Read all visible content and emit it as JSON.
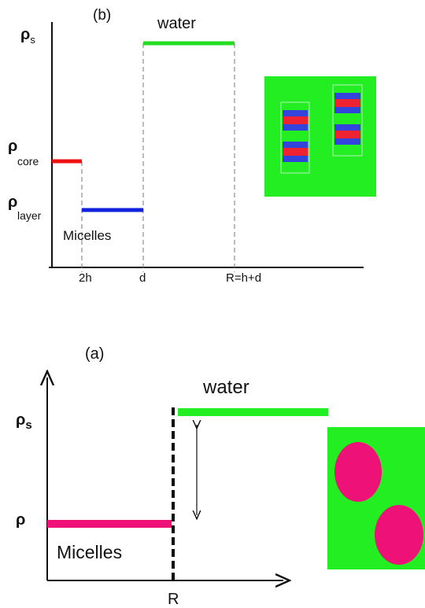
{
  "panel_b": {
    "label": "(b)",
    "water": "water",
    "micelles": "Micelles",
    "y_labels": [
      {
        "symbol": "ρ",
        "sub": "s"
      },
      {
        "symbol": "ρ",
        "sub": "core"
      },
      {
        "symbol": "ρ",
        "sub": "layer"
      }
    ],
    "x_labels": [
      "2h",
      "d",
      "R=h+d"
    ]
  },
  "panel_a": {
    "label": "(a)",
    "water": "water",
    "micelles": "Micelles",
    "y_labels": [
      {
        "symbol": "ρ",
        "sub": "s"
      },
      {
        "symbol": "ρ"
      }
    ],
    "x_labels": [
      "R"
    ]
  }
}
